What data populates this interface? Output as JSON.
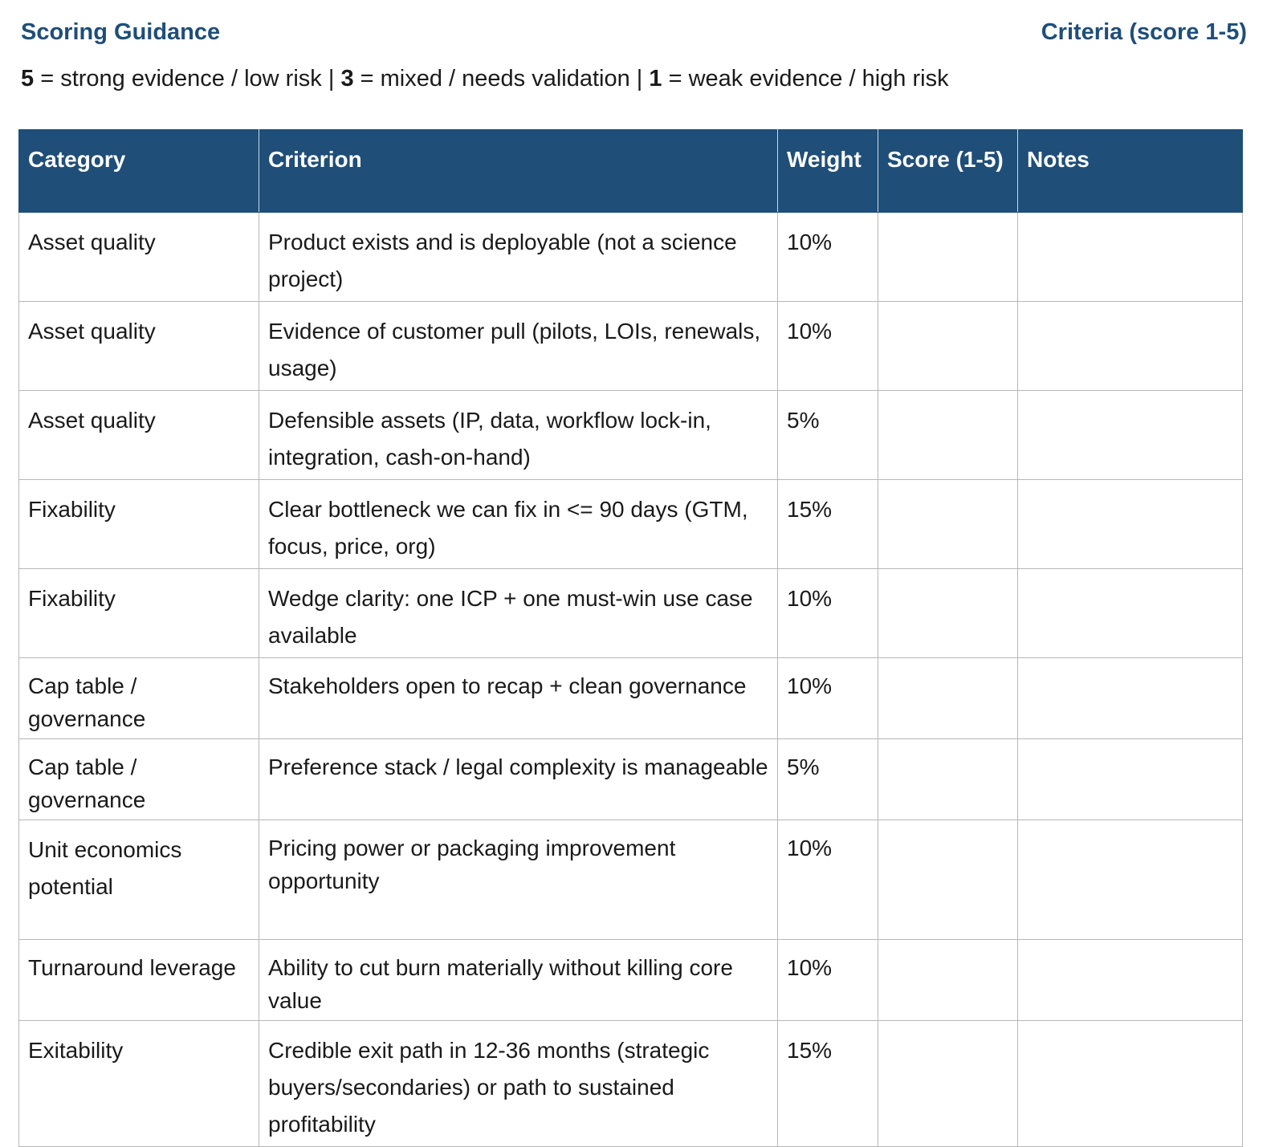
{
  "header": {
    "left_title": "Scoring Guidance",
    "right_title": "Criteria (score 1-5)"
  },
  "legend": {
    "n5": "5",
    "t5": " = strong evidence / low risk | ",
    "n3": "3",
    "t3": " = mixed / needs validation | ",
    "n1": "1",
    "t1": " = weak evidence / high risk"
  },
  "table": {
    "columns": [
      "Category",
      "Criterion",
      "Weight",
      "Score (1-5)",
      "Notes"
    ],
    "rows": [
      {
        "category": "Asset quality",
        "criterion": "Product exists and is deployable (not a science project)",
        "weight": "10%",
        "score": "",
        "notes": ""
      },
      {
        "category": "Asset quality",
        "criterion": "Evidence of customer pull (pilots, LOIs, renewals, usage)",
        "weight": "10%",
        "score": "",
        "notes": ""
      },
      {
        "category": "Asset quality",
        "criterion": "Defensible assets (IP, data, workflow lock-in, integration, cash-on-hand)",
        "weight": "5%",
        "score": "",
        "notes": ""
      },
      {
        "category": "Fixability",
        "criterion": "Clear bottleneck we can fix in <= 90 days (GTM, focus, price, org)",
        "weight": "15%",
        "score": "",
        "notes": ""
      },
      {
        "category": "Fixability",
        "criterion": "Wedge clarity: one ICP + one must-win use case available",
        "weight": "10%",
        "score": "",
        "notes": ""
      },
      {
        "category": "Cap table / governance",
        "criterion": "Stakeholders open to recap + clean governance",
        "weight": "10%",
        "score": "",
        "notes": ""
      },
      {
        "category": "Cap table / governance",
        "criterion": "Preference stack / legal complexity is manageable",
        "weight": "5%",
        "score": "",
        "notes": ""
      },
      {
        "category": "Unit economics potential",
        "criterion": "Pricing power or packaging improvement opportunity",
        "weight": "10%",
        "score": "",
        "notes": ""
      },
      {
        "category": "Turnaround leverage",
        "criterion": "Ability to cut burn materially without killing core value",
        "weight": "10%",
        "score": "",
        "notes": ""
      },
      {
        "category": "Exitability",
        "criterion": "Credible exit path in 12-36 months (strategic buyers/secondaries) or path to sustained profitability",
        "weight": "15%",
        "score": "",
        "notes": ""
      }
    ]
  }
}
